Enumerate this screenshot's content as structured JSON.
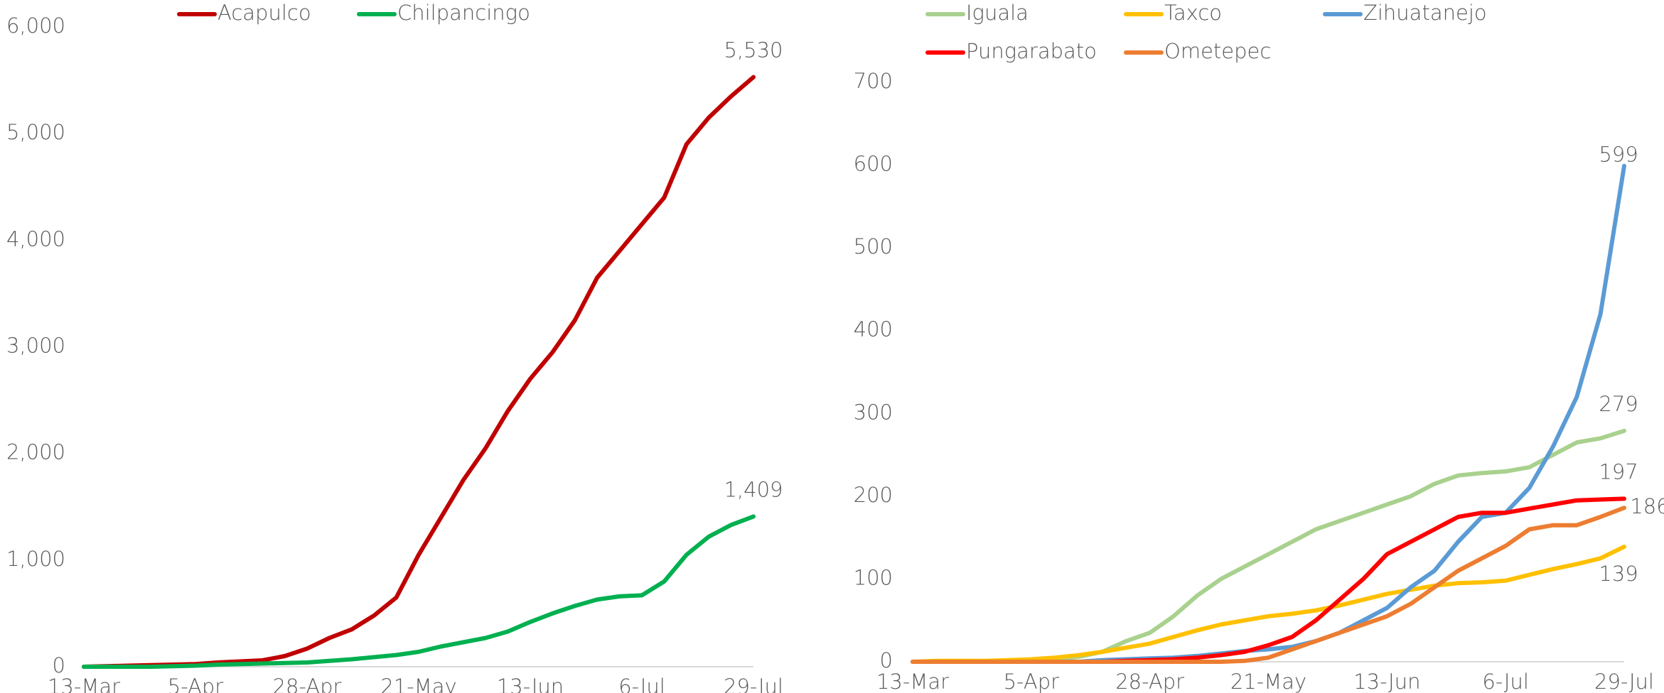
{
  "chart_data": [
    {
      "type": "line",
      "categories": [
        "13-Mar",
        null,
        null,
        null,
        null,
        "5-Apr",
        null,
        null,
        null,
        null,
        "28-Apr",
        null,
        null,
        null,
        null,
        "21-May",
        null,
        null,
        null,
        null,
        "13-Jun",
        null,
        null,
        null,
        null,
        "6-Jul",
        null,
        null,
        null,
        null,
        "29-Jul"
      ],
      "ylim": [
        0,
        6000
      ],
      "yticks": [
        0,
        {
          "value": 1000,
          "label": "1,000"
        },
        {
          "value": 2000,
          "label": "2,000"
        },
        {
          "value": 3000,
          "label": "3,000"
        },
        {
          "value": 4000,
          "label": "4,000"
        },
        {
          "value": 5000,
          "label": "5,000"
        },
        {
          "value": 6000,
          "label": "6,000"
        }
      ],
      "grid": false,
      "legend": "top",
      "series": [
        {
          "name": "Acapulco",
          "color": "#c00000",
          "values": [
            0,
            5,
            10,
            15,
            20,
            25,
            40,
            50,
            60,
            100,
            170,
            270,
            350,
            480,
            650,
            1050,
            1400,
            1750,
            2050,
            2400,
            2700,
            2950,
            3250,
            3650,
            3900,
            4150,
            4400,
            4900,
            5150,
            5350,
            5530
          ],
          "value_labels": [
            null,
            null,
            null,
            null,
            null,
            null,
            null,
            null,
            null,
            null,
            null,
            null,
            null,
            null,
            null,
            null,
            null,
            null,
            null,
            null,
            null,
            null,
            null,
            null,
            null,
            null,
            null,
            null,
            null,
            null,
            "5,530"
          ]
        },
        {
          "name": "Chilpancingo",
          "color": "#00b050",
          "values": [
            0,
            0,
            0,
            0,
            5,
            10,
            20,
            25,
            30,
            35,
            40,
            55,
            70,
            90,
            110,
            140,
            190,
            230,
            270,
            330,
            420,
            500,
            570,
            630,
            660,
            670,
            800,
            1050,
            1220,
            1330,
            1409
          ],
          "value_labels": [
            null,
            null,
            null,
            null,
            null,
            null,
            null,
            null,
            null,
            null,
            null,
            null,
            null,
            null,
            null,
            null,
            null,
            null,
            null,
            null,
            null,
            null,
            null,
            null,
            null,
            null,
            null,
            null,
            null,
            null,
            "1,409"
          ]
        }
      ]
    },
    {
      "type": "line",
      "categories": [
        "13-Mar",
        null,
        null,
        null,
        null,
        "5-Apr",
        null,
        null,
        null,
        null,
        "28-Apr",
        null,
        null,
        null,
        null,
        "21-May",
        null,
        null,
        null,
        null,
        "13-Jun",
        null,
        null,
        null,
        null,
        "6-Jul",
        null,
        null,
        null,
        null,
        "29-Jul"
      ],
      "ylim": [
        0,
        700
      ],
      "yticks": [
        0,
        100,
        200,
        300,
        400,
        500,
        600,
        700
      ],
      "grid": false,
      "legend": "top",
      "series": [
        {
          "name": "Iguala",
          "color": "#a9d18e",
          "values": [
            0,
            0,
            0,
            0,
            0,
            2,
            3,
            6,
            12,
            25,
            35,
            55,
            80,
            100,
            115,
            130,
            145,
            160,
            170,
            180,
            190,
            200,
            215,
            225,
            228,
            230,
            235,
            250,
            265,
            270,
            279
          ]
        },
        {
          "name": "Taxco",
          "color": "#ffc000",
          "values": [
            0,
            1,
            1,
            1,
            2,
            3,
            5,
            8,
            12,
            17,
            22,
            30,
            38,
            45,
            50,
            55,
            58,
            62,
            68,
            75,
            82,
            87,
            92,
            95,
            96,
            98,
            105,
            112,
            118,
            125,
            139
          ]
        },
        {
          "name": "Zihuatanejo",
          "color": "#5b9bd5",
          "values": [
            0,
            0,
            0,
            0,
            0,
            0,
            0,
            0,
            2,
            3,
            4,
            5,
            7,
            10,
            13,
            15,
            18,
            25,
            35,
            50,
            65,
            90,
            110,
            145,
            175,
            180,
            210,
            260,
            320,
            420,
            599
          ]
        },
        {
          "name": "Pungarabato",
          "color": "#ff0000",
          "values": [
            0,
            0,
            0,
            0,
            0,
            0,
            0,
            0,
            0,
            1,
            2,
            3,
            5,
            8,
            12,
            20,
            30,
            50,
            75,
            100,
            130,
            145,
            160,
            175,
            180,
            180,
            185,
            190,
            195,
            196,
            197
          ]
        },
        {
          "name": "Ometepec",
          "color": "#ed7d31",
          "values": [
            0,
            0,
            0,
            0,
            0,
            0,
            0,
            0,
            0,
            0,
            0,
            0,
            0,
            0,
            1,
            5,
            15,
            25,
            35,
            45,
            55,
            70,
            90,
            110,
            125,
            140,
            160,
            165,
            165,
            175,
            186
          ]
        }
      ]
    }
  ]
}
